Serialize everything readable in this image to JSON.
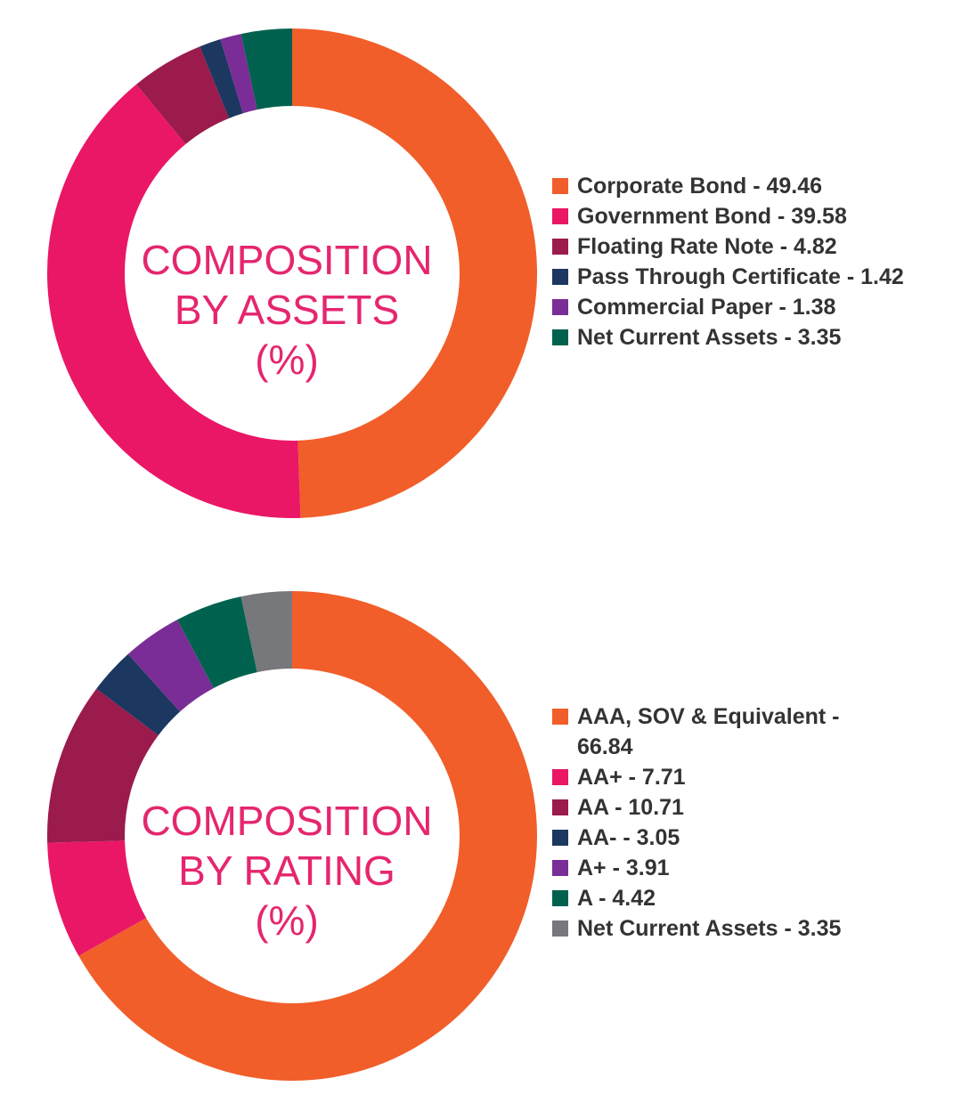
{
  "chart_data": [
    {
      "type": "pie",
      "title": "COMPOSITION BY ASSETS (%)",
      "title_lines": [
        "COMPOSITION",
        "BY ASSETS",
        "(%)"
      ],
      "categories": [
        "Corporate Bond",
        "Government Bond",
        "Floating Rate Note",
        "Pass Through Certificate",
        "Commercial Paper",
        "Net Current Assets"
      ],
      "values": [
        49.46,
        39.58,
        4.82,
        1.42,
        1.38,
        3.35
      ],
      "colors": [
        "#f15e2a",
        "#ea1766",
        "#9a1b4c",
        "#1c3760",
        "#7a2d96",
        "#00624e"
      ],
      "legend_labels": [
        "Corporate Bond - 49.46",
        "Government Bond - 39.58",
        "Floating Rate Note - 4.82",
        "Pass Through Certificate - 1.42",
        "Commercial Paper - 1.38",
        "Net Current Assets - 3.35"
      ],
      "legend_placement": "right"
    },
    {
      "type": "pie",
      "title": "COMPOSITION BY RATING (%)",
      "title_lines": [
        "COMPOSITION",
        "BY RATING",
        "(%)"
      ],
      "categories": [
        "AAA, SOV & Equivalent",
        "AA+",
        "AA",
        "AA-",
        "A+",
        "A",
        "Net Current Assets"
      ],
      "values": [
        66.84,
        7.71,
        10.71,
        3.05,
        3.91,
        4.42,
        3.35
      ],
      "colors": [
        "#f15e2a",
        "#ea1766",
        "#9a1b4c",
        "#1c3760",
        "#7a2d96",
        "#00624e",
        "#77787b"
      ],
      "legend_labels": [
        [
          "AAA, SOV & Equivalent -",
          "66.84"
        ],
        "AA+ - 7.71",
        "AA - 10.71",
        "AA- - 3.05",
        "A+ - 3.91",
        "A - 4.42",
        "Net Current Assets - 3.35"
      ],
      "legend_placement": "right"
    }
  ]
}
